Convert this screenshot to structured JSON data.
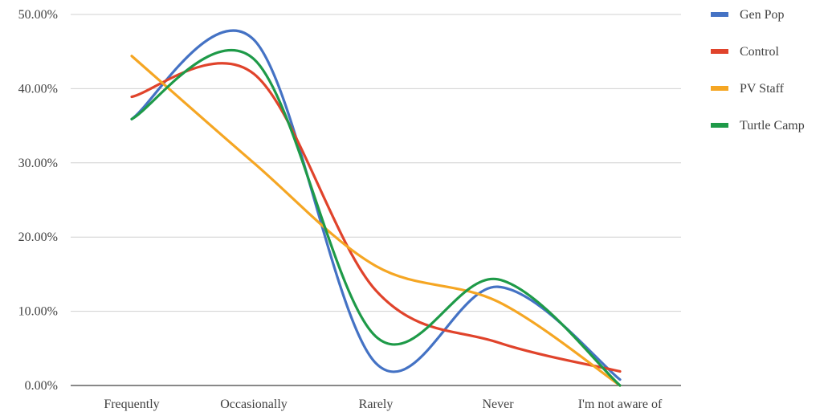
{
  "chart_data": {
    "type": "line",
    "smooth": true,
    "categories": [
      "Frequently",
      "Occasionally",
      "Rarely",
      "Never",
      "I'm not aware of"
    ],
    "y_tick_labels": [
      "0.00%",
      "10.00%",
      "20.00%",
      "30.00%",
      "40.00%",
      "50.00%"
    ],
    "ylim": [
      0,
      50
    ],
    "grid": true,
    "legend_position": "right",
    "series": [
      {
        "name": "Gen Pop",
        "color": "#4472C4",
        "values": [
          35.9,
          46.6,
          3.0,
          13.3,
          0.8
        ]
      },
      {
        "name": "Control",
        "color": "#E0432B",
        "values": [
          38.9,
          42.0,
          12.8,
          5.8,
          1.9
        ]
      },
      {
        "name": "PV Staff",
        "color": "#F5A623",
        "values": [
          44.4,
          30.0,
          16.1,
          11.3,
          0.0
        ]
      },
      {
        "name": "Turtle Camp",
        "color": "#1E9A48",
        "values": [
          35.9,
          44.0,
          6.6,
          14.3,
          0.0
        ]
      }
    ]
  }
}
